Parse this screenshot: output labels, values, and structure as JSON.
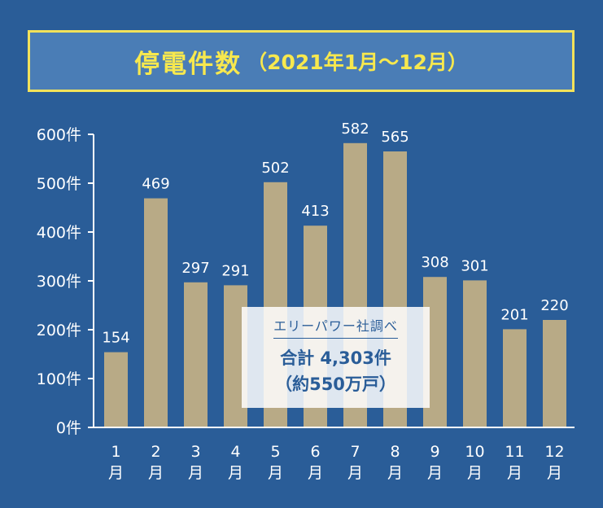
{
  "header": {
    "title": "停電件数",
    "period": "（2021年1月〜12月）"
  },
  "note": {
    "source": "エリーパワー社調べ",
    "total": "合計 4,303件",
    "households": "（約550万戸）"
  },
  "colors": {
    "background": "#2a5d98",
    "bar": "#b8aa86",
    "title_text": "#f7e84e",
    "title_border": "#f2e25a",
    "axis_text": "#ffffff"
  },
  "chart_data": {
    "type": "bar",
    "title": "停電件数（2021年1月〜12月）",
    "categories": [
      "1月",
      "2月",
      "3月",
      "4月",
      "5月",
      "6月",
      "7月",
      "8月",
      "9月",
      "10月",
      "11月",
      "12月"
    ],
    "category_numbers": [
      "1",
      "2",
      "3",
      "4",
      "5",
      "6",
      "7",
      "8",
      "9",
      "10",
      "11",
      "12"
    ],
    "category_unit": "月",
    "values": [
      154,
      469,
      297,
      291,
      502,
      413,
      582,
      565,
      308,
      301,
      201,
      220
    ],
    "ylim": [
      0,
      600
    ],
    "yticks": [
      0,
      100,
      200,
      300,
      400,
      500,
      600
    ],
    "ytick_labels": [
      "0件",
      "100件",
      "200件",
      "300件",
      "400件",
      "500件",
      "600件"
    ],
    "grid": false,
    "data_labels": true
  }
}
